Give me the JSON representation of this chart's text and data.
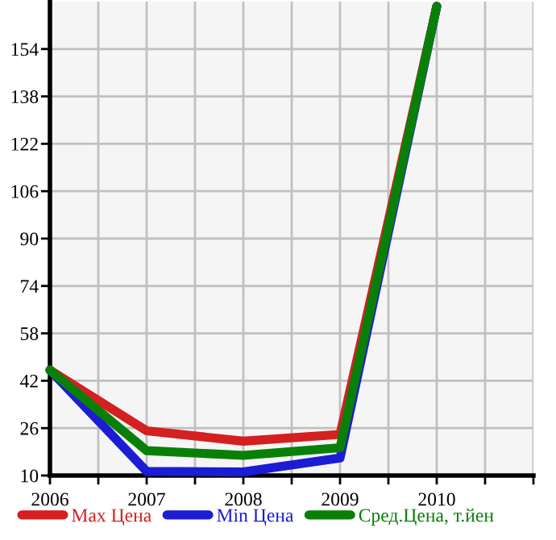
{
  "chart_data": {
    "type": "line",
    "x": [
      2006,
      2007,
      2008,
      2009,
      2010
    ],
    "series": [
      {
        "name": "Max Цена",
        "color": "#d42020",
        "values": [
          45.6,
          25.1,
          21.6,
          23.9,
          168.4
        ]
      },
      {
        "name": "Min Цена",
        "color": "#1c1cd4",
        "values": [
          45.6,
          11.4,
          11.2,
          15.9,
          168.4
        ]
      },
      {
        "name": "Сред.Цена, т.йен",
        "color": "#088008",
        "values": [
          45.6,
          18.4,
          16.8,
          19.4,
          168.4
        ]
      }
    ],
    "xlim": [
      2006,
      2011
    ],
    "xticks": [
      2006,
      {
        "value": 2006.5,
        "label": null
      },
      2007,
      {
        "value": 2007.5,
        "label": null
      },
      2008,
      {
        "value": 2008.5,
        "label": null
      },
      2009,
      {
        "value": 2009.5,
        "label": null
      },
      2010,
      {
        "value": 2010.5,
        "label": null
      },
      {
        "value": 2011,
        "label": null
      }
    ],
    "ylim": [
      10,
      170
    ],
    "yticks": [
      10,
      26,
      42,
      58,
      74,
      90,
      106,
      122,
      138,
      154
    ],
    "grid": true,
    "legend": "bottom",
    "marker": "none",
    "line_style": "solid"
  }
}
